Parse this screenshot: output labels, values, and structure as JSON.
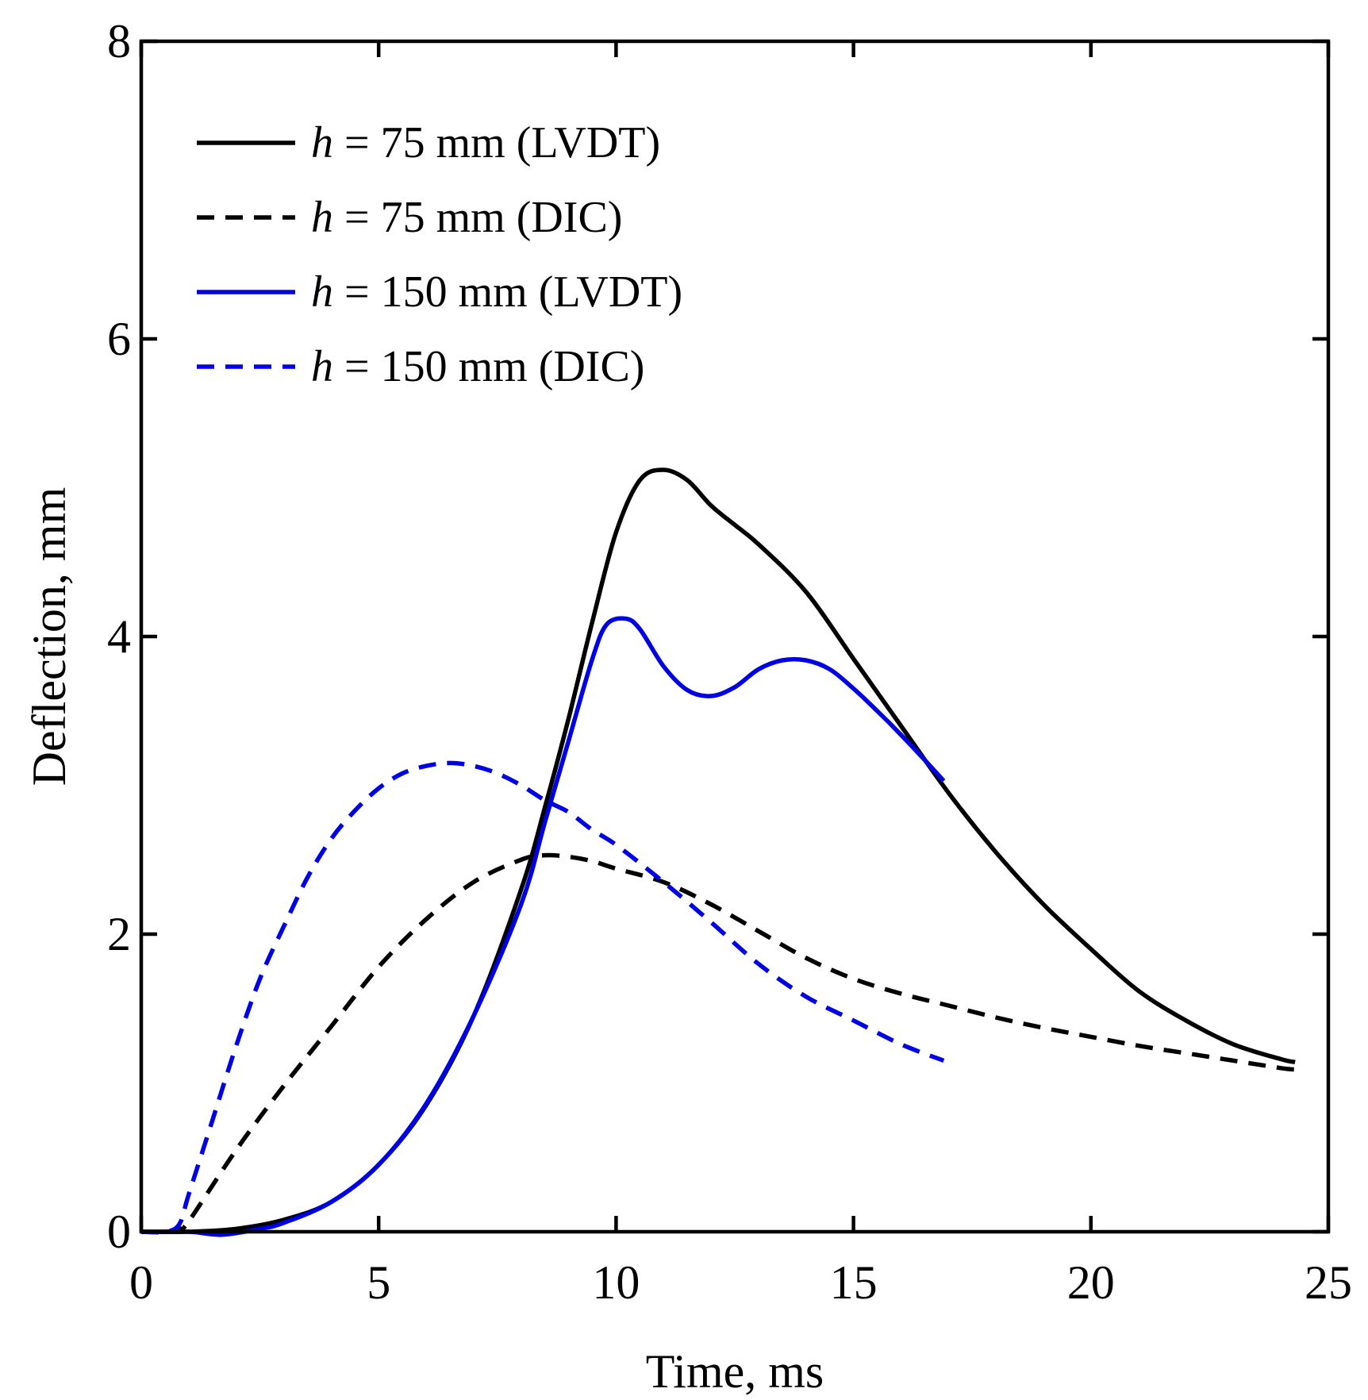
{
  "chart_data": {
    "type": "line",
    "title": "",
    "xlabel": "Time, ms",
    "ylabel": "Deflection, mm",
    "xlim": [
      0,
      25
    ],
    "ylim": [
      0,
      8
    ],
    "xticks": [
      0,
      5,
      10,
      15,
      20,
      25
    ],
    "yticks": [
      0,
      2,
      4,
      6,
      8
    ],
    "xtick_labels": [
      "0",
      "5",
      "10",
      "15",
      "20",
      "25"
    ],
    "ytick_labels": [
      "0",
      "2",
      "4",
      "6",
      "8"
    ],
    "grid": false,
    "legend_position": "top-left",
    "legend_var": "h",
    "legend_eq": " = ",
    "series": [
      {
        "name": "h = 75 mm (LVDT)",
        "legend_rest": "75 mm (LVDT)",
        "color": "#000000",
        "dash": "solid",
        "x": [
          0,
          1,
          2,
          3,
          4,
          5,
          6,
          7,
          8,
          8.5,
          9,
          9.5,
          10,
          10.5,
          11,
          11.5,
          12,
          12.5,
          13,
          14,
          15,
          16,
          17,
          18,
          19,
          20,
          21,
          22,
          23,
          24,
          24.3
        ],
        "y": [
          0,
          0,
          0.02,
          0.08,
          0.2,
          0.45,
          0.85,
          1.45,
          2.3,
          2.85,
          3.45,
          4.1,
          4.7,
          5.05,
          5.12,
          5.05,
          4.88,
          4.75,
          4.62,
          4.3,
          3.85,
          3.4,
          2.95,
          2.55,
          2.2,
          1.9,
          1.62,
          1.42,
          1.26,
          1.16,
          1.14
        ]
      },
      {
        "name": "h = 75 mm (DIC)",
        "legend_rest": "75 mm (DIC)",
        "color": "#000000",
        "dash": "dashed",
        "x": [
          0,
          0.5,
          0.8,
          1,
          2,
          3,
          4,
          5,
          6,
          7,
          8,
          8.5,
          9,
          9.5,
          10,
          11,
          12,
          13,
          14,
          15,
          16,
          17,
          18,
          19,
          20,
          21,
          22,
          23,
          24,
          24.3
        ],
        "y": [
          0,
          0,
          0.02,
          0.07,
          0.55,
          0.98,
          1.38,
          1.78,
          2.1,
          2.35,
          2.5,
          2.53,
          2.52,
          2.49,
          2.44,
          2.35,
          2.2,
          2.02,
          1.84,
          1.7,
          1.6,
          1.52,
          1.44,
          1.37,
          1.31,
          1.25,
          1.2,
          1.15,
          1.1,
          1.09
        ]
      },
      {
        "name": "h = 150 mm (LVDT)",
        "legend_rest": "150 mm (LVDT)",
        "color": "#0000e6",
        "dash": "solid",
        "x": [
          0,
          1,
          1.7,
          2.5,
          3,
          4,
          5,
          6,
          7,
          8,
          8.5,
          9,
          9.5,
          9.8,
          10.2,
          10.5,
          11,
          11.5,
          12,
          12.5,
          13,
          13.5,
          14,
          14.5,
          15,
          15.5,
          16,
          16.5,
          16.9
        ],
        "y": [
          0,
          0,
          -0.02,
          0.02,
          0.06,
          0.2,
          0.45,
          0.86,
          1.45,
          2.2,
          2.75,
          3.3,
          3.85,
          4.08,
          4.12,
          4.05,
          3.8,
          3.64,
          3.6,
          3.66,
          3.78,
          3.84,
          3.84,
          3.78,
          3.65,
          3.5,
          3.34,
          3.17,
          3.03
        ]
      },
      {
        "name": "h = 150 mm (DIC)",
        "legend_rest": "150 mm (DIC)",
        "color": "#0000e6",
        "dash": "dashed",
        "x": [
          0,
          0.5,
          0.8,
          1,
          1.5,
          2,
          2.5,
          3,
          3.5,
          4,
          4.5,
          5,
          5.5,
          6,
          6.5,
          7,
          7.5,
          8,
          8.5,
          9,
          9.5,
          10,
          11,
          12,
          13,
          14,
          15,
          16,
          16.9
        ],
        "y": [
          0,
          0,
          0.05,
          0.25,
          0.75,
          1.25,
          1.7,
          2.05,
          2.38,
          2.64,
          2.83,
          2.98,
          3.08,
          3.13,
          3.15,
          3.13,
          3.08,
          3.0,
          2.9,
          2.82,
          2.7,
          2.6,
          2.35,
          2.08,
          1.8,
          1.58,
          1.42,
          1.26,
          1.15
        ]
      }
    ]
  }
}
